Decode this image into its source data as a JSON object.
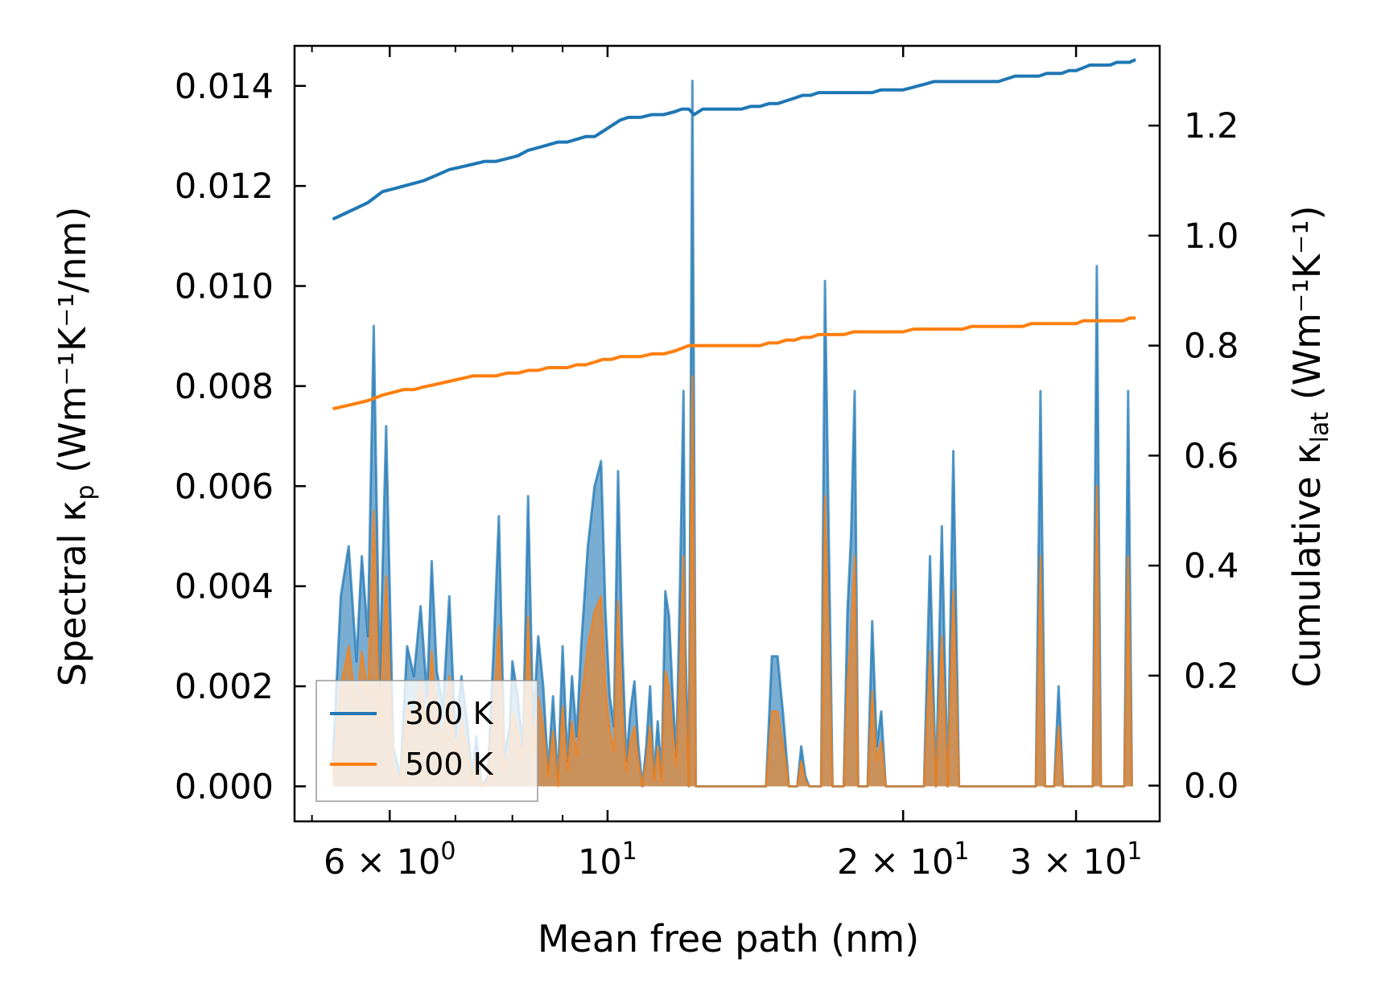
{
  "chart_data": {
    "type": "line",
    "xlabel": "Mean free path (nm)",
    "ylabel_left": "Spectral κ",
    "ylabel_left_sub": "p",
    "ylabel_left_units": "(Wm⁻¹K⁻¹/nm)",
    "ylabel_right": "Cumulative κ",
    "ylabel_right_sub": "lat",
    "ylabel_right_units": "(Wm⁻¹K⁻¹)",
    "x_scale": "log",
    "xlim": [
      4.8,
      36.5
    ],
    "ylim_left": [
      -0.0007,
      0.0148
    ],
    "ylim_right": [
      -0.065,
      1.345
    ],
    "x_ticks": [
      {
        "value": 6,
        "label": "6 × 10",
        "exp": "0"
      },
      {
        "value": 10,
        "label": "10",
        "exp": "1"
      },
      {
        "value": 20,
        "label": "2 × 10",
        "exp": "1"
      },
      {
        "value": 30,
        "label": "3 × 10",
        "exp": "1"
      }
    ],
    "y_left_ticks": [
      "0.000",
      "0.002",
      "0.004",
      "0.006",
      "0.008",
      "0.010",
      "0.012",
      "0.014"
    ],
    "y_right_ticks": [
      "0.0",
      "0.2",
      "0.4",
      "0.6",
      "0.8",
      "1.0",
      "1.2"
    ],
    "legend": {
      "position": "lower-left",
      "entries": [
        "300 K",
        "500 K"
      ]
    },
    "colors": {
      "s300": "#1f77b4",
      "s500": "#ff7f0e"
    },
    "spectral": {
      "x": [
        5.25,
        5.35,
        5.45,
        5.55,
        5.62,
        5.7,
        5.78,
        5.86,
        5.95,
        6.05,
        6.15,
        6.25,
        6.35,
        6.45,
        6.55,
        6.62,
        6.7,
        6.8,
        6.9,
        7.0,
        7.1,
        7.2,
        7.28,
        7.35,
        7.45,
        7.55,
        7.65,
        7.75,
        7.85,
        7.95,
        8.0,
        8.1,
        8.2,
        8.3,
        8.4,
        8.5,
        8.6,
        8.7,
        8.8,
        8.9,
        9.0,
        9.1,
        9.2,
        9.3,
        9.4,
        9.55,
        9.7,
        9.85,
        9.95,
        10.05,
        10.15,
        10.25,
        10.35,
        10.45,
        10.55,
        10.65,
        10.75,
        10.85,
        10.95,
        11.05,
        11.15,
        11.25,
        11.35,
        11.45,
        11.55,
        11.65,
        11.75,
        11.85,
        11.95,
        12.0,
        12.1,
        12.2,
        12.3,
        12.4,
        12.5,
        12.65,
        12.8,
        12.95,
        13.1,
        13.3,
        13.5,
        13.7,
        13.9,
        14.1,
        14.3,
        14.5,
        14.7,
        14.9,
        15.1,
        15.3,
        15.45,
        15.6,
        15.75,
        15.9,
        16.05,
        16.2,
        16.35,
        16.5,
        16.65,
        16.8,
        16.95,
        17.1,
        17.25,
        17.4,
        17.55,
        17.7,
        17.85,
        18.0,
        18.2,
        18.4,
        18.6,
        18.8,
        19.0,
        19.2,
        19.5,
        19.8,
        20.1,
        20.4,
        20.7,
        21.0,
        21.3,
        21.6,
        21.9,
        22.2,
        22.5,
        22.8,
        23.1,
        23.4,
        23.7,
        24.0,
        24.3,
        24.6,
        24.9,
        25.2,
        25.5,
        25.8,
        26.1,
        26.4,
        26.7,
        27.0,
        27.3,
        27.6,
        27.9,
        28.2,
        28.5,
        28.8,
        29.1,
        29.4,
        29.7,
        30.0,
        30.3,
        30.6,
        30.9,
        31.2,
        31.5,
        31.8,
        32.1,
        32.4,
        32.7,
        33.0,
        33.3,
        33.6,
        33.9,
        34.2,
        34.5
      ],
      "y300": [
        0.0005,
        0.0038,
        0.0048,
        0.0025,
        0.0046,
        0.003,
        0.0092,
        0.002,
        0.0072,
        0.0008,
        0.0002,
        0.0028,
        0.0022,
        0.0036,
        0.0018,
        0.0045,
        0.0023,
        0.0016,
        0.0038,
        0.001,
        0.0022,
        0.0012,
        0.0002,
        0.001,
        0.0,
        0.0002,
        0.0026,
        0.0054,
        0.0006,
        0.0012,
        0.0025,
        0.0018,
        0.0008,
        0.0058,
        0.0012,
        0.003,
        0.002,
        0.0003,
        0.0018,
        0.0001,
        0.0028,
        0.0005,
        0.0022,
        0.001,
        0.0028,
        0.0048,
        0.006,
        0.0065,
        0.0035,
        0.0018,
        0.0012,
        0.0063,
        0.0028,
        0.0005,
        0.0015,
        0.0021,
        0.0008,
        0.0,
        0.0008,
        0.002,
        0.0002,
        0.0013,
        0.0002,
        0.0039,
        0.0034,
        0.0018,
        0.0006,
        0.004,
        0.0079,
        0.003,
        0.0,
        0.0141,
        0.0,
        0.0,
        0.0,
        0.0,
        0.0,
        0.0,
        0.0,
        0.0,
        0.0,
        0.0,
        0.0,
        0.0,
        0.0,
        0.0,
        0.0026,
        0.0026,
        0.0014,
        0.0,
        0.0,
        0.0,
        0.0008,
        0.0002,
        0.0,
        0.0,
        0.0,
        0.0,
        0.0101,
        0.005,
        0.0,
        0.0,
        0.0,
        0.0,
        0.0035,
        0.005,
        0.0079,
        0.0,
        0.0,
        0.0,
        0.0033,
        0.0008,
        0.0015,
        0.0,
        0.0,
        0.0,
        0.0,
        0.0,
        0.0,
        0.0,
        0.0046,
        0.0,
        0.0052,
        0.0,
        0.0067,
        0.0,
        0.0,
        0.0,
        0.0,
        0.0,
        0.0,
        0.0,
        0.0,
        0.0,
        0.0,
        0.0,
        0.0,
        0.0,
        0.0,
        0.0,
        0.0,
        0.0079,
        0.0,
        0.0,
        0.0,
        0.002,
        0.0,
        0.0,
        0.0,
        0.0,
        0.0,
        0.0,
        0.0,
        0.0,
        0.0104,
        0.0,
        0.0,
        0.0,
        0.0,
        0.0,
        0.0,
        0.0,
        0.0079,
        0.0
      ],
      "y500": [
        0.0002,
        0.002,
        0.0028,
        0.0016,
        0.0027,
        0.0018,
        0.0055,
        0.0012,
        0.0042,
        0.0004,
        0.0001,
        0.0016,
        0.0013,
        0.0021,
        0.0011,
        0.0027,
        0.0014,
        0.0009,
        0.0022,
        0.0006,
        0.0013,
        0.0007,
        0.0001,
        0.0006,
        0.0,
        0.0001,
        0.0015,
        0.0032,
        0.0003,
        0.0007,
        0.0015,
        0.0011,
        0.0005,
        0.0034,
        0.0007,
        0.0018,
        0.0012,
        0.0002,
        0.0011,
        0.0,
        0.0016,
        0.0003,
        0.0013,
        0.0006,
        0.0017,
        0.0028,
        0.0035,
        0.0038,
        0.002,
        0.0011,
        0.0007,
        0.0037,
        0.0016,
        0.0003,
        0.0009,
        0.0012,
        0.0005,
        0.0,
        0.0005,
        0.0012,
        0.0001,
        0.0008,
        0.0001,
        0.0023,
        0.002,
        0.0011,
        0.0004,
        0.0024,
        0.0046,
        0.0018,
        0.0,
        0.0082,
        0.0,
        0.0,
        0.0,
        0.0,
        0.0,
        0.0,
        0.0,
        0.0,
        0.0,
        0.0,
        0.0,
        0.0,
        0.0,
        0.0,
        0.0015,
        0.0015,
        0.0008,
        0.0,
        0.0,
        0.0,
        0.0005,
        0.0001,
        0.0,
        0.0,
        0.0,
        0.0,
        0.0058,
        0.0029,
        0.0,
        0.0,
        0.0,
        0.0,
        0.0021,
        0.003,
        0.0046,
        0.0,
        0.0,
        0.0,
        0.0019,
        0.0005,
        0.0009,
        0.0,
        0.0,
        0.0,
        0.0,
        0.0,
        0.0,
        0.0,
        0.0027,
        0.0,
        0.003,
        0.0,
        0.0039,
        0.0,
        0.0,
        0.0,
        0.0,
        0.0,
        0.0,
        0.0,
        0.0,
        0.0,
        0.0,
        0.0,
        0.0,
        0.0,
        0.0,
        0.0,
        0.0,
        0.0046,
        0.0,
        0.0,
        0.0,
        0.0012,
        0.0,
        0.0,
        0.0,
        0.0,
        0.0,
        0.0,
        0.0,
        0.0,
        0.006,
        0.0,
        0.0,
        0.0,
        0.0,
        0.0,
        0.0,
        0.0,
        0.0046,
        0.0
      ]
    },
    "cumulative": {
      "x": [
        5.25,
        5.4,
        5.55,
        5.7,
        5.8,
        5.9,
        6.05,
        6.2,
        6.35,
        6.5,
        6.7,
        6.9,
        7.1,
        7.3,
        7.5,
        7.7,
        7.9,
        8.1,
        8.3,
        8.5,
        8.7,
        8.9,
        9.1,
        9.3,
        9.5,
        9.7,
        9.9,
        10.1,
        10.3,
        10.5,
        10.8,
        11.1,
        11.4,
        11.7,
        11.9,
        12.1,
        12.25,
        12.5,
        12.8,
        13.1,
        13.4,
        13.7,
        14.0,
        14.3,
        14.6,
        14.9,
        15.2,
        15.5,
        15.8,
        16.1,
        16.4,
        16.7,
        17.0,
        17.4,
        17.8,
        18.2,
        18.6,
        19.0,
        19.5,
        20.0,
        20.5,
        21.0,
        21.5,
        22.0,
        22.5,
        23.0,
        23.5,
        24.0,
        24.5,
        25.0,
        25.5,
        26.0,
        26.5,
        27.0,
        27.5,
        28.0,
        28.5,
        29.0,
        29.5,
        30.0,
        30.5,
        31.0,
        31.5,
        32.0,
        32.5,
        33.0,
        33.5,
        34.0,
        34.5
      ],
      "y300": [
        1.03,
        1.04,
        1.05,
        1.06,
        1.07,
        1.08,
        1.085,
        1.09,
        1.095,
        1.1,
        1.11,
        1.12,
        1.125,
        1.13,
        1.135,
        1.135,
        1.14,
        1.145,
        1.155,
        1.16,
        1.165,
        1.17,
        1.17,
        1.175,
        1.18,
        1.18,
        1.19,
        1.2,
        1.21,
        1.215,
        1.215,
        1.22,
        1.22,
        1.225,
        1.23,
        1.23,
        1.22,
        1.23,
        1.23,
        1.23,
        1.23,
        1.23,
        1.235,
        1.235,
        1.24,
        1.24,
        1.245,
        1.25,
        1.255,
        1.255,
        1.26,
        1.26,
        1.26,
        1.26,
        1.26,
        1.26,
        1.26,
        1.265,
        1.265,
        1.265,
        1.27,
        1.275,
        1.28,
        1.28,
        1.28,
        1.28,
        1.28,
        1.28,
        1.28,
        1.28,
        1.285,
        1.29,
        1.29,
        1.29,
        1.29,
        1.295,
        1.295,
        1.295,
        1.3,
        1.3,
        1.305,
        1.31,
        1.31,
        1.31,
        1.31,
        1.315,
        1.315,
        1.315,
        1.32
      ],
      "y500": [
        0.685,
        0.69,
        0.695,
        0.7,
        0.705,
        0.71,
        0.715,
        0.72,
        0.72,
        0.725,
        0.73,
        0.735,
        0.74,
        0.745,
        0.745,
        0.745,
        0.75,
        0.75,
        0.755,
        0.755,
        0.76,
        0.76,
        0.76,
        0.765,
        0.765,
        0.77,
        0.775,
        0.775,
        0.78,
        0.78,
        0.78,
        0.785,
        0.785,
        0.79,
        0.795,
        0.8,
        0.8,
        0.8,
        0.8,
        0.8,
        0.8,
        0.8,
        0.8,
        0.8,
        0.805,
        0.805,
        0.81,
        0.81,
        0.815,
        0.815,
        0.82,
        0.82,
        0.82,
        0.82,
        0.825,
        0.825,
        0.825,
        0.825,
        0.825,
        0.825,
        0.83,
        0.83,
        0.83,
        0.83,
        0.83,
        0.83,
        0.835,
        0.835,
        0.835,
        0.835,
        0.835,
        0.835,
        0.835,
        0.84,
        0.84,
        0.84,
        0.84,
        0.84,
        0.84,
        0.84,
        0.845,
        0.845,
        0.845,
        0.845,
        0.845,
        0.845,
        0.845,
        0.85,
        0.85
      ]
    }
  }
}
